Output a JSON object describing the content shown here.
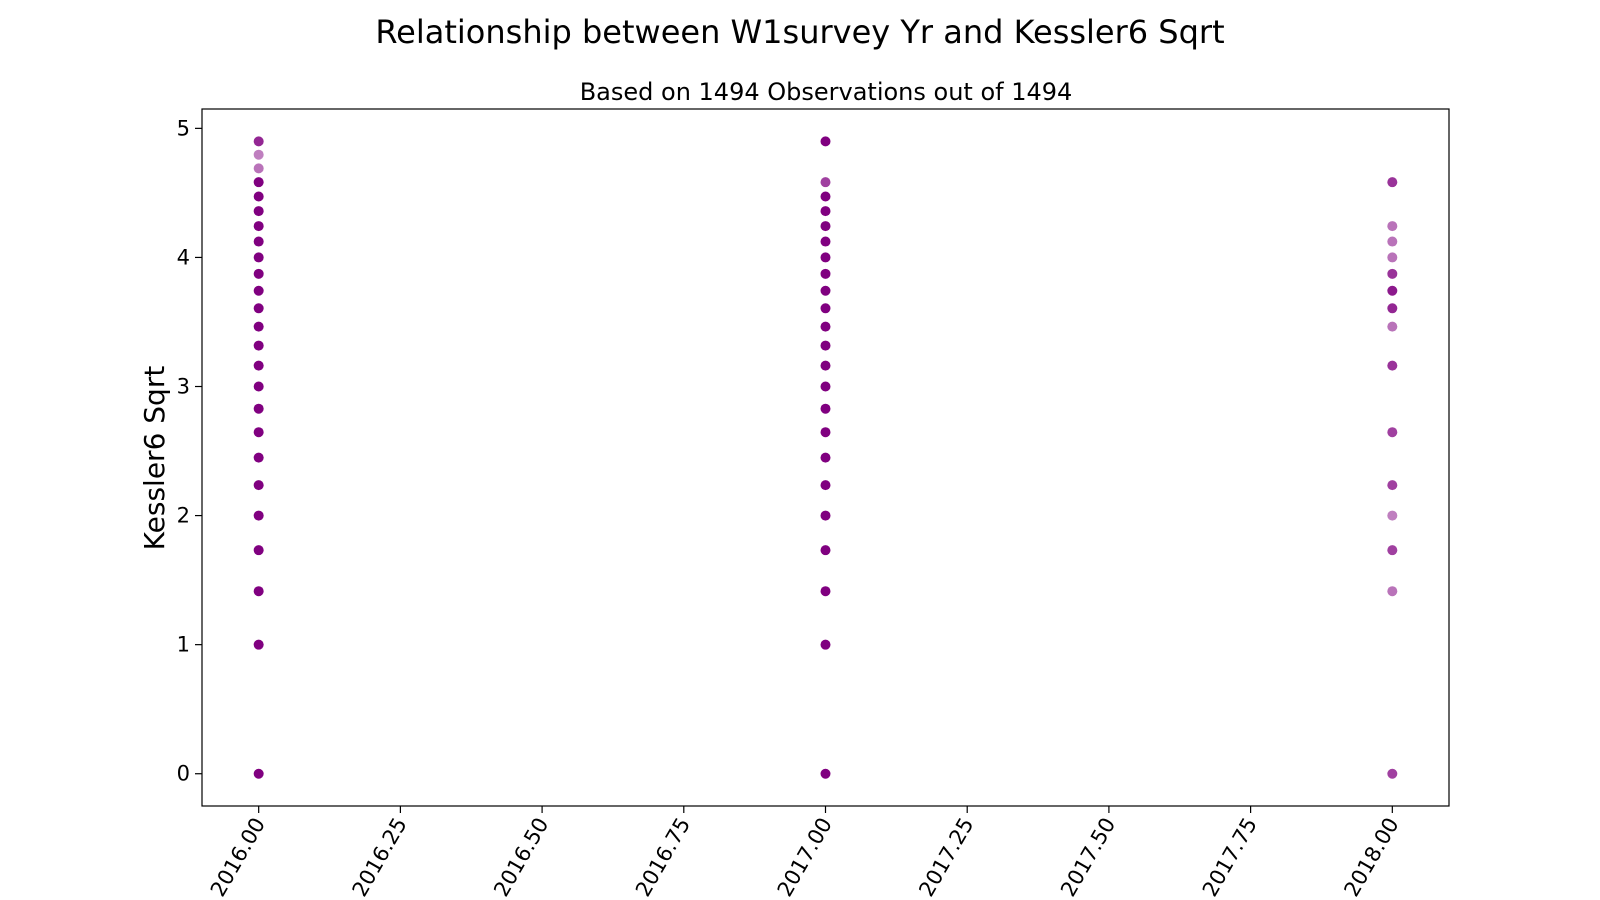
{
  "chart_data": {
    "type": "scatter",
    "title": "Relationship between W1survey Yr and Kessler6 Sqrt",
    "subtitle": "Based on 1494 Observations out of 1494",
    "xlabel": "",
    "ylabel": "Kessler6 Sqrt",
    "xlim": [
      2015.9,
      2018.1
    ],
    "ylim": [
      -0.25,
      5.15
    ],
    "x_ticks": [
      "2016.00",
      "2016.25",
      "2016.50",
      "2016.75",
      "2017.00",
      "2017.25",
      "2017.50",
      "2017.75",
      "2018.00"
    ],
    "x_tick_values": [
      2016.0,
      2016.25,
      2016.5,
      2016.75,
      2017.0,
      2017.25,
      2017.5,
      2017.75,
      2018.0
    ],
    "y_ticks": [
      "0",
      "1",
      "2",
      "3",
      "4",
      "5"
    ],
    "y_tick_values": [
      0,
      1,
      2,
      3,
      4,
      5
    ],
    "grid": false,
    "marker_color": "#800080",
    "series": [
      {
        "x": 2016,
        "y": [
          0,
          1,
          1.414,
          1.732,
          2,
          2.236,
          2.449,
          2.646,
          2.828,
          3,
          3.162,
          3.317,
          3.464,
          3.606,
          3.742,
          3.873,
          4,
          4.123,
          4.243,
          4.359,
          4.472,
          4.583,
          4.69,
          4.796,
          4.899
        ],
        "opacity": [
          1,
          1,
          1,
          1,
          1,
          1,
          1,
          1,
          1,
          1,
          1,
          1,
          1,
          1,
          1,
          1,
          1,
          1,
          1,
          1,
          1,
          1,
          0.55,
          0.5,
          0.85
        ]
      },
      {
        "x": 2017,
        "y": [
          0,
          1,
          1.414,
          1.732,
          2,
          2.236,
          2.449,
          2.646,
          2.828,
          3,
          3.162,
          3.317,
          3.464,
          3.606,
          3.742,
          3.873,
          4,
          4.123,
          4.243,
          4.359,
          4.472,
          4.583,
          4.899
        ],
        "opacity": [
          1,
          1,
          1,
          1,
          1,
          1,
          1,
          1,
          1,
          1,
          1,
          1,
          1,
          1,
          1,
          1,
          1,
          1,
          1,
          1,
          1,
          0.75,
          1
        ]
      },
      {
        "x": 2018,
        "y": [
          0,
          1.414,
          1.732,
          2,
          2.236,
          2.646,
          3.162,
          3.464,
          3.606,
          3.742,
          3.873,
          4,
          4.123,
          4.243,
          4.583
        ],
        "opacity": [
          0.75,
          0.55,
          0.75,
          0.5,
          0.75,
          0.75,
          0.8,
          0.55,
          0.85,
          0.9,
          0.8,
          0.55,
          0.55,
          0.55,
          0.8
        ]
      }
    ]
  }
}
